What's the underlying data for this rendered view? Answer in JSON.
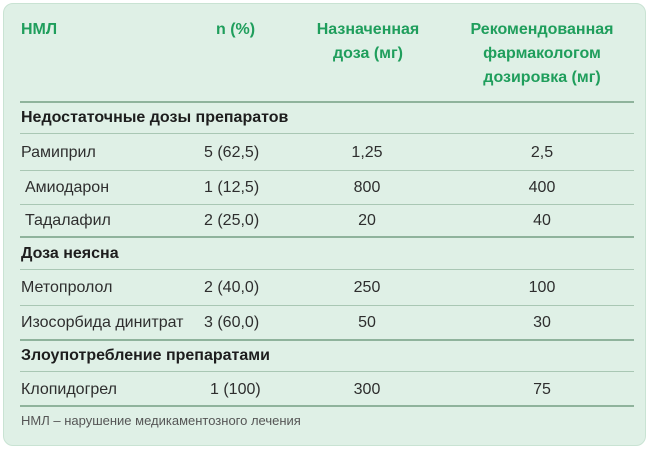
{
  "header": {
    "col1": "НМЛ",
    "col2": "n (%)",
    "col3_line1": "Назначенная",
    "col3_line2": "доза (мг)",
    "col4_line1": "Рекомендованная",
    "col4_line2": "фармакологом",
    "col4_line3": "дозировка (мг)"
  },
  "sections": [
    {
      "title": "Недостаточные дозы препаратов",
      "rows": [
        {
          "drug": "Рамиприл",
          "n": "5 (62,5)",
          "dose": "1,25",
          "rec": "2,5"
        },
        {
          "drug": "Амиодарон",
          "n": "1 (12,5)",
          "dose": "800",
          "rec": "400"
        },
        {
          "drug": "Тадалафил",
          "n": "2 (25,0)",
          "dose": "20",
          "rec": "40"
        }
      ]
    },
    {
      "title": "Доза неясна",
      "rows": [
        {
          "drug": "Метопролол",
          "n": "2 (40,0)",
          "dose": "250",
          "rec": "100"
        },
        {
          "drug": "Изосорбида динитрат",
          "n": "3 (60,0)",
          "dose": "50",
          "rec": "30"
        }
      ]
    },
    {
      "title": "Злоупотребление препаратами",
      "rows": [
        {
          "drug": "Клопидогрел",
          "n": "1 (100)",
          "dose": "300",
          "rec": "75"
        }
      ]
    }
  ],
  "footnote": "НМЛ – нарушение медикаментозного лечения",
  "colors": {
    "header": "#1f9e5c",
    "background": "#dff0e6",
    "rule": "#a9c7b4"
  }
}
